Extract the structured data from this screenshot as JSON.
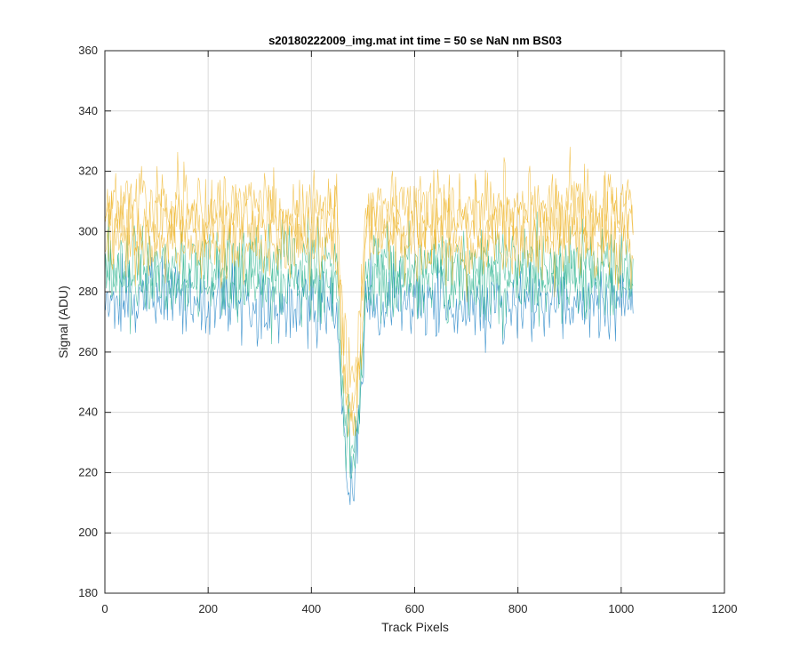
{
  "chart_data": {
    "type": "line",
    "title": "s20180222009_img.mat int time = 50 se  NaN nm BS03",
    "xlabel": "Track Pixels",
    "ylabel": "Signal (ADU)",
    "xlim": [
      0,
      1200
    ],
    "ylim": [
      180,
      360
    ],
    "xticks": [
      0,
      200,
      400,
      600,
      800,
      1000,
      1200
    ],
    "yticks": [
      180,
      200,
      220,
      240,
      260,
      280,
      300,
      320,
      340,
      360
    ],
    "grid": true,
    "legend": "none",
    "pixel_range": [
      1,
      1024
    ],
    "baseline_signal_range": [
      265,
      320
    ],
    "noise_extremes": [
      250,
      341
    ],
    "dip": {
      "x_range": [
        450,
        505
      ],
      "min_signal": 196
    },
    "colors": {
      "high": "#EDB120",
      "mid": "#22B08A",
      "low": "#0072BD",
      "axis": "#262626",
      "grid": "#DADADA"
    }
  }
}
